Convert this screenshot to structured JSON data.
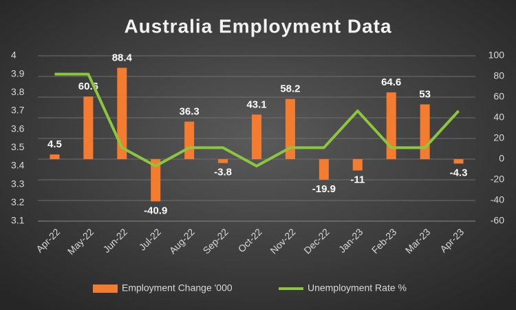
{
  "chart_data": {
    "type": "combo",
    "title": "Australia Employment Data",
    "categories": [
      "Apr-22",
      "May-22",
      "Jun-22",
      "Jul-22",
      "Aug-22",
      "Sep-22",
      "Oct-22",
      "Nov-22",
      "Dec-22",
      "Jan-23",
      "Feb-23",
      "Mar-23",
      "Apr-23"
    ],
    "series": [
      {
        "name": "Employment Change '000",
        "type": "bar",
        "axis": "y2",
        "color": "#f47c30",
        "values": [
          4.5,
          60.6,
          88.4,
          -40.9,
          36.3,
          -3.8,
          43.1,
          58.2,
          -19.9,
          -11,
          64.6,
          53,
          -4.3
        ]
      },
      {
        "name": "Unemployment Rate %",
        "type": "line",
        "axis": "y",
        "color": "#8cc63f",
        "values": [
          3.9,
          3.9,
          3.5,
          3.4,
          3.5,
          3.5,
          3.4,
          3.5,
          3.5,
          3.7,
          3.5,
          3.5,
          3.7
        ]
      }
    ],
    "ylim": [
      3.1,
      4
    ],
    "yticks": [
      3.1,
      3.2,
      3.3,
      3.4,
      3.5,
      3.6,
      3.7,
      3.8,
      3.9,
      4
    ],
    "y2lim": [
      -60,
      100
    ],
    "y2ticks": [
      -60,
      -40,
      -20,
      0,
      20,
      40,
      60,
      80,
      100
    ],
    "grid": true,
    "legend": "bottom"
  }
}
